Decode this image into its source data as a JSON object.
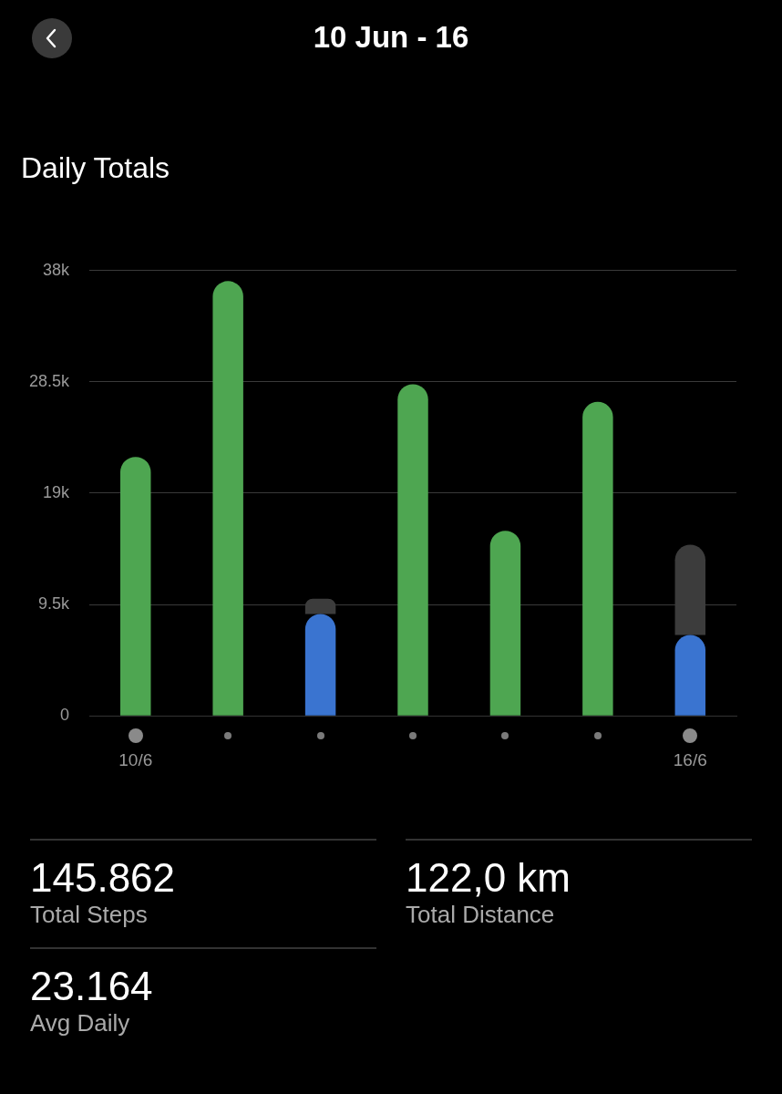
{
  "chart_data": {
    "type": "bar",
    "title": "10 Jun - 16",
    "subtitle": "Daily Totals",
    "categories": [
      "10/6",
      null,
      null,
      null,
      null,
      null,
      "16/6"
    ],
    "stacked": true,
    "series": [
      {
        "colors": [
          "#4ea651",
          "#4ea651",
          "#3a74d0",
          "#4ea651",
          "#4ea651",
          "#4ea651",
          "#3a74d0"
        ],
        "values": [
          22100,
          37100,
          8700,
          28300,
          15800,
          26800,
          6900
        ]
      },
      {
        "color": "#3c3c3c",
        "values": [
          null,
          null,
          1300,
          null,
          null,
          null,
          7700
        ]
      }
    ],
    "ylim": [
      0,
      38000
    ],
    "yticks": [
      0,
      {
        "value": 9500,
        "label": "9.5k"
      },
      {
        "value": 19000,
        "label": "19k"
      },
      {
        "value": 28500,
        "label": "28.5k"
      },
      {
        "value": 38000,
        "label": "38k"
      }
    ],
    "grid": "y",
    "legend": false,
    "annotations": [
      "145.862",
      "Total Steps",
      "122,0 km",
      "Total Distance",
      "23.164",
      "Avg Daily"
    ]
  }
}
